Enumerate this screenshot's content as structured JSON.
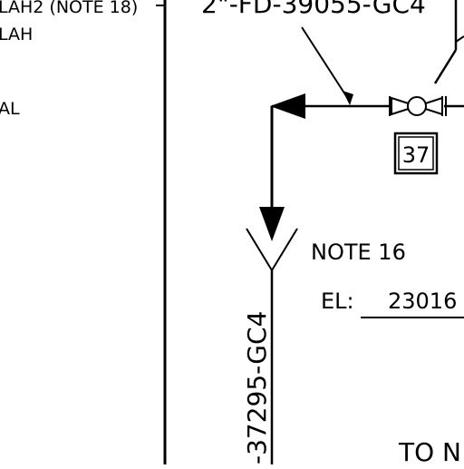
{
  "drawing": {
    "colors": {
      "ink": "#000000",
      "paper": "#ffffff"
    },
    "left_panel": {
      "line1": "LAH2 (NOTE 18)",
      "line2": "LAH",
      "line3": "AL"
    },
    "line_numbers": {
      "top": "2\"-FD-39055-GC4",
      "vertical": "-37295-GC4"
    },
    "valve_tag": "37",
    "note": "NOTE 16",
    "elevation_label": "EL:",
    "elevation_value": "23016",
    "destination": "TO N"
  }
}
